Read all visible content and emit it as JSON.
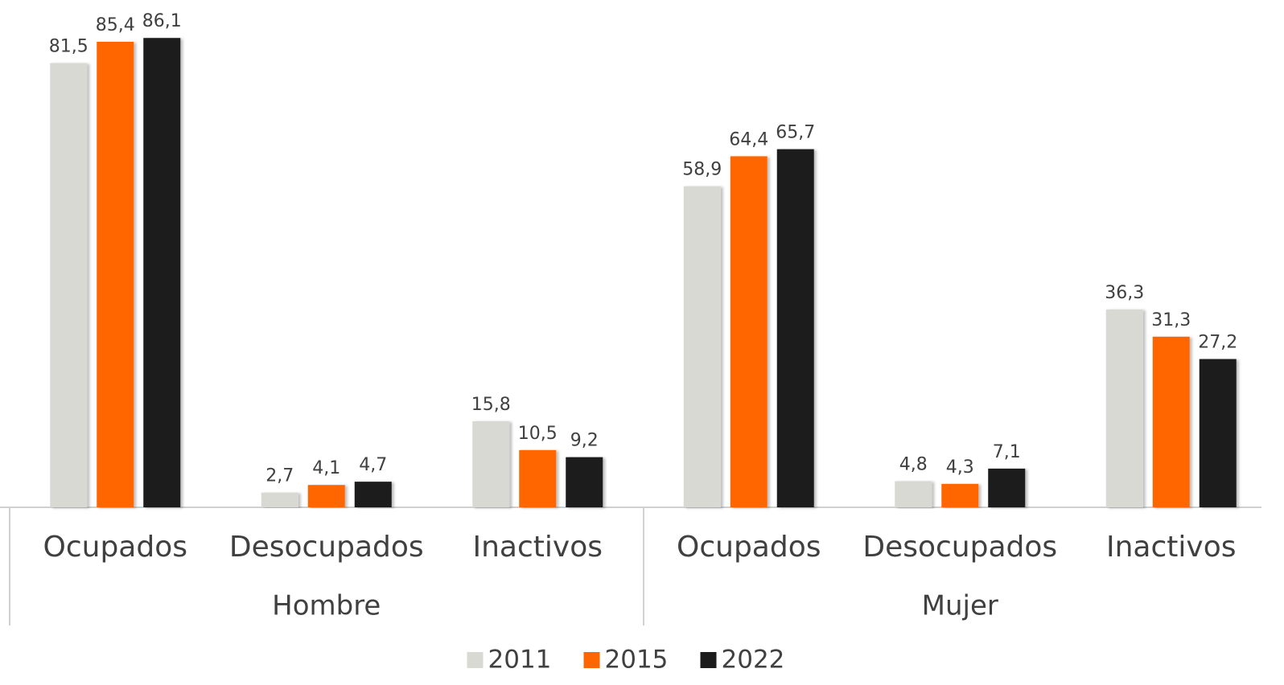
{
  "chart_data": {
    "type": "bar",
    "categories": [
      "Ocupados",
      "Desocupados",
      "Inactivos",
      "Ocupados",
      "Desocupados",
      "Inactivos"
    ],
    "groups": [
      "Hombre",
      "Mujer"
    ],
    "series": [
      {
        "name": "2011",
        "color": "#d9d9d3",
        "values": [
          81.5,
          2.7,
          15.8,
          58.9,
          4.8,
          36.3
        ],
        "value_labels": [
          "81,5",
          "2,7",
          "15,8",
          "58,9",
          "4,8",
          "36,3"
        ]
      },
      {
        "name": "2015",
        "color": "#ff6600",
        "values": [
          85.4,
          4.1,
          10.5,
          64.4,
          4.3,
          31.3
        ],
        "value_labels": [
          "85,4",
          "4,1",
          "10,5",
          "64,4",
          "4,3",
          "31,3"
        ]
      },
      {
        "name": "2022",
        "color": "#1c1c1c",
        "values": [
          86.1,
          4.7,
          9.2,
          65.7,
          7.1,
          27.2
        ],
        "value_labels": [
          "86,1",
          "4,7",
          "9,2",
          "65,7",
          "7,1",
          "27,2"
        ]
      }
    ],
    "legend": "bottom"
  }
}
